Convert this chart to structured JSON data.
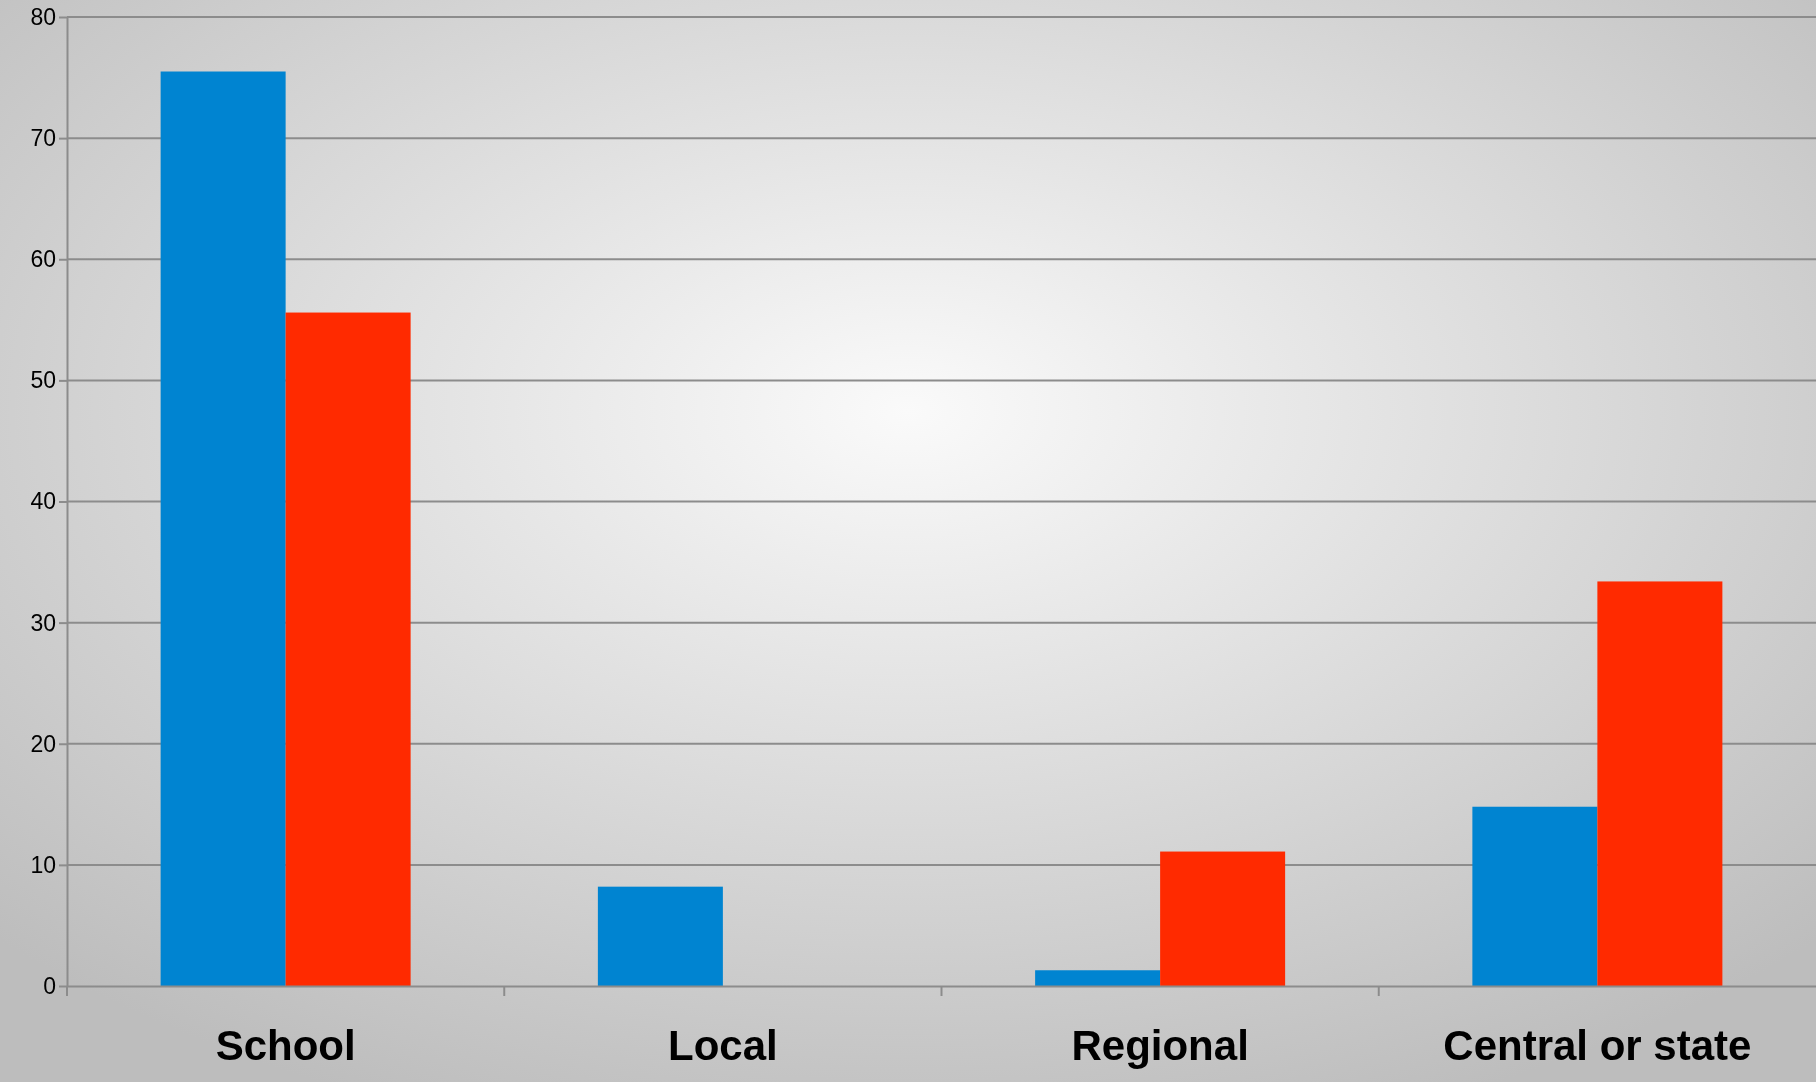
{
  "chart_data": {
    "type": "bar",
    "categories": [
      "School",
      "Local",
      "Regional",
      "Central or state"
    ],
    "series": [
      {
        "color": "#0084d1",
        "values": [
          75.5,
          8.2,
          1.3,
          14.8
        ]
      },
      {
        "color": "#ff2a00",
        "values": [
          55.6,
          0,
          11.1,
          33.4
        ]
      }
    ],
    "ylim": [
      0,
      80
    ],
    "yticks": [
      0,
      10,
      20,
      30,
      40,
      50,
      60,
      70,
      80
    ],
    "grid": "y"
  }
}
